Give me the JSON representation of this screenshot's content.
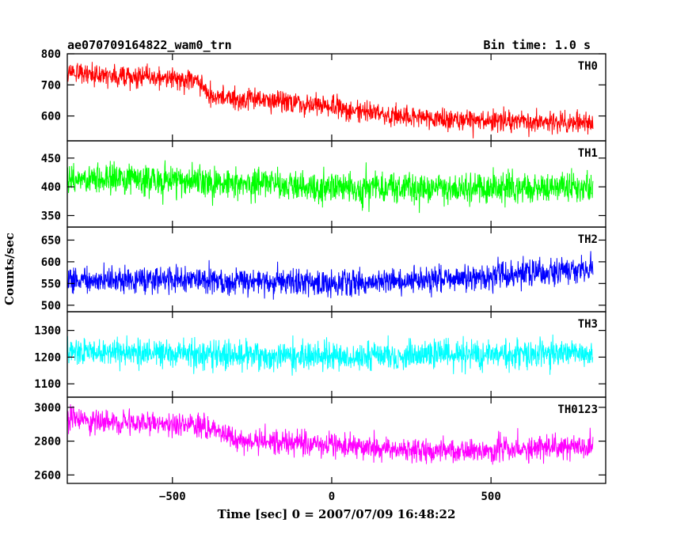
{
  "chart_data": {
    "type": "line",
    "title_left": "ae070709164822_wam0_trn",
    "title_right": "Bin time: 1.0 s",
    "xlabel": "Time [sec] 0 = 2007/07/09 16:48:22",
    "ylabel": "Counts/sec",
    "xlim": [
      -830,
      860
    ],
    "xticks": [
      -500,
      0,
      500
    ],
    "xtick_labels": [
      "−500",
      "0",
      "500"
    ],
    "x_data_range": [
      -830,
      820
    ],
    "grid": false,
    "panels": [
      {
        "name": "TH0",
        "color": "#ff0000",
        "ylim": [
          520,
          800
        ],
        "yticks": [
          600,
          700,
          800
        ],
        "trend": [
          [
            -830,
            740
          ],
          [
            -420,
            715
          ],
          [
            -380,
            665
          ],
          [
            0,
            630
          ],
          [
            300,
            590
          ],
          [
            820,
            580
          ]
        ],
        "noise_amplitude": 45
      },
      {
        "name": "TH1",
        "color": "#00ff00",
        "ylim": [
          330,
          480
        ],
        "yticks": [
          350,
          400,
          450
        ],
        "trend": [
          [
            -830,
            415
          ],
          [
            -400,
            410
          ],
          [
            0,
            397
          ],
          [
            820,
            400
          ]
        ],
        "noise_amplitude": 35
      },
      {
        "name": "TH2",
        "color": "#0000ff",
        "ylim": [
          485,
          680
        ],
        "yticks": [
          500,
          550,
          600,
          650
        ],
        "trend": [
          [
            -830,
            558
          ],
          [
            -300,
            555
          ],
          [
            0,
            550
          ],
          [
            400,
            562
          ],
          [
            820,
            585
          ]
        ],
        "noise_amplitude": 40
      },
      {
        "name": "TH3",
        "color": "#00ffff",
        "ylim": [
          1050,
          1370
        ],
        "yticks": [
          1100,
          1200,
          1300
        ],
        "trend": [
          [
            -830,
            1220
          ],
          [
            0,
            1200
          ],
          [
            820,
            1215
          ]
        ],
        "noise_amplitude": 70
      },
      {
        "name": "TH0123",
        "color": "#ff00ff",
        "ylim": [
          2550,
          3060
        ],
        "yticks": [
          2600,
          2800,
          3000
        ],
        "trend": [
          [
            -830,
            2930
          ],
          [
            -420,
            2890
          ],
          [
            -300,
            2810
          ],
          [
            0,
            2780
          ],
          [
            300,
            2740
          ],
          [
            820,
            2770
          ]
        ],
        "noise_amplitude": 90
      }
    ]
  }
}
